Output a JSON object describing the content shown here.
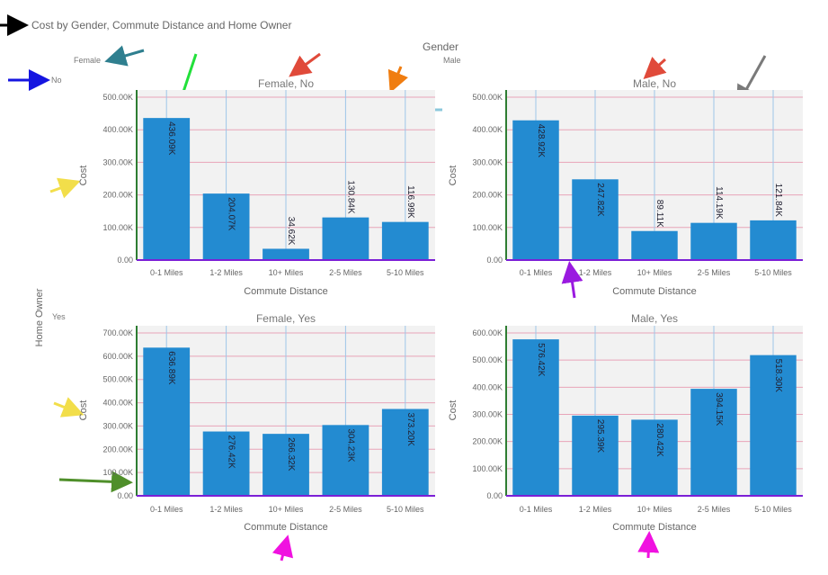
{
  "title": "Cost by Gender, Commute Distance and Home Owner",
  "legend": {
    "gender_title": "Gender",
    "female": "Female",
    "male": "Male",
    "no": "No",
    "yes": "Yes",
    "home_owner_title": "Home Owner"
  },
  "colors": {
    "bar": "#238bd1",
    "plot_bg": "#f2f2f2",
    "gridline": "#e8a4b8",
    "baseline": "#7b1fd6",
    "left_axis": "#2e7d32"
  },
  "chart_data": [
    {
      "type": "bar",
      "title": "Female, No",
      "xlabel": "Commute Distance",
      "ylabel": "Cost",
      "categories": [
        "0-1 Miles",
        "1-2 Miles",
        "10+ Miles",
        "2-5 Miles",
        "5-10 Miles"
      ],
      "values": [
        436.09,
        204.07,
        34.62,
        130.84,
        116.99
      ],
      "value_labels": [
        "436.09K",
        "204.07K",
        "34.62K",
        "130.84K",
        "116.99K"
      ],
      "yticks": [
        "0.00",
        "100.00K",
        "200.00K",
        "300.00K",
        "400.00K",
        "500.00K"
      ],
      "ylim": [
        0,
        500
      ],
      "grid": true
    },
    {
      "type": "bar",
      "title": "Male, No",
      "xlabel": "Commute Distance",
      "ylabel": "Cost",
      "categories": [
        "0-1 Miles",
        "1-2 Miles",
        "10+ Miles",
        "2-5 Miles",
        "5-10 Miles"
      ],
      "values": [
        428.92,
        247.82,
        89.11,
        114.19,
        121.84
      ],
      "value_labels": [
        "428.92K",
        "247.82K",
        "89.11K",
        "114.19K",
        "121.84K"
      ],
      "yticks": [
        "0.00",
        "100.00K",
        "200.00K",
        "300.00K",
        "400.00K",
        "500.00K"
      ],
      "ylim": [
        0,
        500
      ],
      "grid": true
    },
    {
      "type": "bar",
      "title": "Female, Yes",
      "xlabel": "Commute Distance",
      "ylabel": "Cost",
      "categories": [
        "0-1 Miles",
        "1-2 Miles",
        "10+ Miles",
        "2-5 Miles",
        "5-10 Miles"
      ],
      "values": [
        636.89,
        276.42,
        266.32,
        304.23,
        373.2
      ],
      "value_labels": [
        "636.89K",
        "276.42K",
        "266.32K",
        "304.23K",
        "373.20K"
      ],
      "yticks": [
        "0.00",
        "100.00K",
        "200.00K",
        "300.00K",
        "400.00K",
        "500.00K",
        "600.00K",
        "700.00K"
      ],
      "ylim": [
        0,
        700
      ],
      "grid": true
    },
    {
      "type": "bar",
      "title": "Male, Yes",
      "xlabel": "Commute Distance",
      "ylabel": "Cost",
      "categories": [
        "0-1 Miles",
        "1-2 Miles",
        "10+ Miles",
        "2-5 Miles",
        "5-10 Miles"
      ],
      "values": [
        576.42,
        295.39,
        280.42,
        394.15,
        518.3
      ],
      "value_labels": [
        "576.42K",
        "295.39K",
        "280.42K",
        "394.15K",
        "518.30K"
      ],
      "yticks": [
        "0.00",
        "100.00K",
        "200.00K",
        "300.00K",
        "400.00K",
        "500.00K",
        "600.00K"
      ],
      "ylim": [
        0,
        600
      ],
      "grid": true
    }
  ]
}
